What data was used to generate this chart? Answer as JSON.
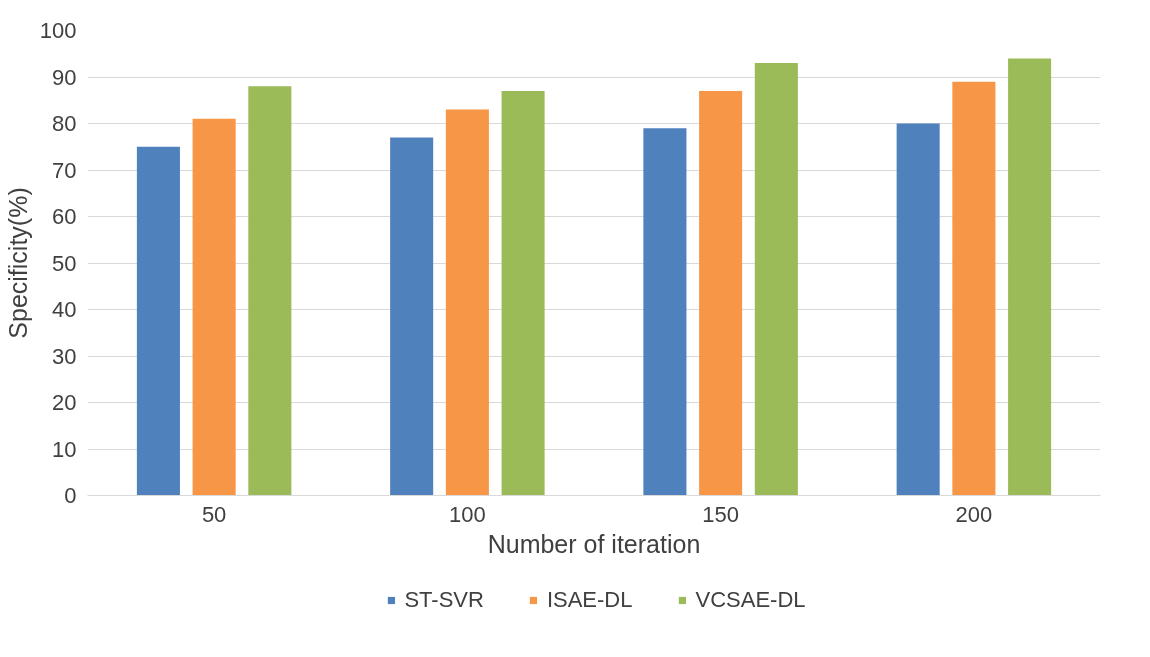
{
  "chart_data": {
    "type": "bar",
    "xlabel": "Number of iteration",
    "ylabel": "Specificity(%)",
    "categories": [
      "50",
      "100",
      "150",
      "200"
    ],
    "series": [
      {
        "name": "ST-SVR",
        "color": "#4f81bd",
        "values": [
          75,
          77,
          79,
          80
        ]
      },
      {
        "name": "ISAE-DL",
        "color": "#f79646",
        "values": [
          81,
          83,
          87,
          89
        ]
      },
      {
        "name": "VCSAE-DL",
        "color": "#9bbb59",
        "values": [
          88,
          87,
          93,
          94
        ]
      }
    ],
    "ylim": [
      0,
      100
    ],
    "yticks": [
      0,
      10,
      20,
      30,
      40,
      50,
      60,
      70,
      80,
      90,
      100
    ],
    "grid": "y",
    "legend": "bottom"
  }
}
